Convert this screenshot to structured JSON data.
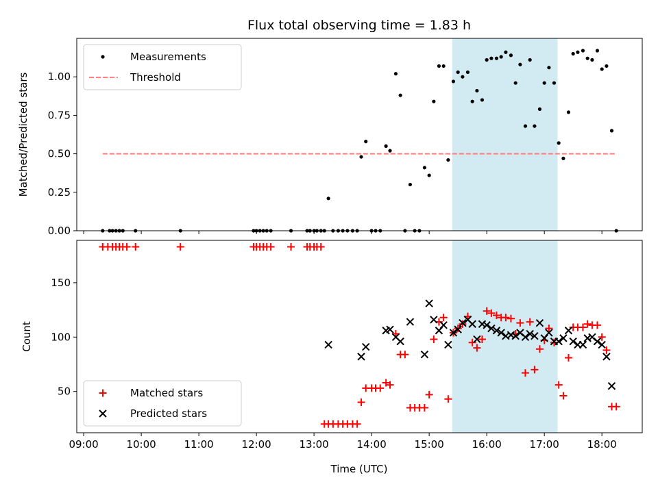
{
  "chart_data": {
    "title": "Flux total observing time = 1.83 h",
    "xlabel": "Time (UTC)",
    "x_ticks": [
      "09:00",
      "10:00",
      "11:00",
      "12:00",
      "13:00",
      "14:00",
      "15:00",
      "16:00",
      "17:00",
      "18:00"
    ],
    "x_range_hours": [
      8.88,
      18.7
    ],
    "highlight_span_hours": [
      15.4,
      17.23
    ],
    "highlight_color": "#add8e6",
    "panels": [
      {
        "type": "scatter",
        "ylabel": "Matched/Predicted stars",
        "ylim": [
          0,
          1.25
        ],
        "y_ticks": [
          "0.00",
          "0.25",
          "0.50",
          "0.75",
          "1.00"
        ],
        "legend": {
          "position": "top-left",
          "entries": [
            "Measurements",
            "Threshold"
          ]
        },
        "series": [
          {
            "name": "Measurements",
            "marker": "dot",
            "color": "#000000",
            "x": [
              9.33,
              9.45,
              9.5,
              9.56,
              9.62,
              9.68,
              9.9,
              10.68,
              11.95,
              12.0,
              12.06,
              12.12,
              12.18,
              12.25,
              12.6,
              12.88,
              12.93,
              13.0,
              13.05,
              13.12,
              13.18,
              13.25,
              13.33,
              13.42,
              13.5,
              13.58,
              13.67,
              13.75,
              13.82,
              13.9,
              14.0,
              14.07,
              14.15,
              14.25,
              14.32,
              14.42,
              14.5,
              14.58,
              14.67,
              14.75,
              14.83,
              14.92,
              15.0,
              15.08,
              15.17,
              15.25,
              15.33,
              15.42,
              15.5,
              15.58,
              15.67,
              15.75,
              15.83,
              15.92,
              16.0,
              16.08,
              16.17,
              16.25,
              16.33,
              16.42,
              16.5,
              16.58,
              16.67,
              16.75,
              16.83,
              16.92,
              17.0,
              17.08,
              17.17,
              17.25,
              17.33,
              17.42,
              17.5,
              17.58,
              17.67,
              17.75,
              17.83,
              17.92,
              18.0,
              18.08,
              18.17,
              18.25
            ],
            "y": [
              0,
              0,
              0,
              0,
              0,
              0,
              0,
              0,
              0,
              0,
              0,
              0,
              0,
              0,
              0,
              0,
              0,
              0,
              0,
              0,
              0,
              0.21,
              0,
              0,
              0,
              0,
              0,
              0,
              0.48,
              0.58,
              0,
              0,
              0,
              0.55,
              0.52,
              1.02,
              0.88,
              0,
              0.3,
              0,
              0,
              0.41,
              0.36,
              0.84,
              1.07,
              1.07,
              0.46,
              0.97,
              1.03,
              1.0,
              1.03,
              0.84,
              0.91,
              0.85,
              1.11,
              1.12,
              1.12,
              1.13,
              1.16,
              1.14,
              0.96,
              1.08,
              0.68,
              1.11,
              0.68,
              0.79,
              0.96,
              1.06,
              0.96,
              0.57,
              0.47,
              0.77,
              1.15,
              1.16,
              1.17,
              1.12,
              1.11,
              1.17,
              1.05,
              1.07,
              0.65,
              0
            ]
          },
          {
            "name": "Threshold",
            "marker": "dashed-line",
            "color": "#ff7f7f",
            "x": [
              9.33,
              18.25
            ],
            "y": [
              0.5,
              0.5
            ]
          }
        ]
      },
      {
        "type": "scatter",
        "ylabel": "Count",
        "ylim": [
          12,
          189
        ],
        "y_ticks": [
          "50",
          "100",
          "150"
        ],
        "legend": {
          "position": "bottom-left",
          "entries": [
            "Matched stars",
            "Predicted stars"
          ]
        },
        "series": [
          {
            "name": "Matched stars",
            "marker": "plus",
            "color": "#ff0000",
            "x": [
              9.33,
              9.42,
              9.5,
              9.56,
              9.62,
              9.68,
              9.75,
              9.9,
              10.68,
              11.95,
              12.0,
              12.06,
              12.12,
              12.18,
              12.25,
              12.6,
              12.88,
              12.93,
              13.0,
              13.05,
              13.12,
              13.18,
              13.25,
              13.33,
              13.42,
              13.5,
              13.58,
              13.67,
              13.75,
              13.82,
              13.9,
              14.0,
              14.07,
              14.15,
              14.25,
              14.32,
              14.42,
              14.5,
              14.58,
              14.67,
              14.75,
              14.83,
              14.92,
              15.0,
              15.08,
              15.17,
              15.25,
              15.33,
              15.42,
              15.5,
              15.58,
              15.67,
              15.75,
              15.83,
              15.92,
              16.0,
              16.08,
              16.17,
              16.25,
              16.33,
              16.42,
              16.5,
              16.58,
              16.67,
              16.75,
              16.83,
              16.92,
              17.0,
              17.08,
              17.17,
              17.25,
              17.33,
              17.42,
              17.5,
              17.58,
              17.67,
              17.75,
              17.83,
              17.92,
              18.0,
              18.08,
              18.17,
              18.25
            ],
            "y": [
              183,
              183,
              183,
              183,
              183,
              183,
              183,
              183,
              183,
              183,
              183,
              183,
              183,
              183,
              183,
              183,
              183,
              183,
              183,
              183,
              183,
              20,
              20,
              20,
              20,
              20,
              20,
              20,
              20,
              40,
              53,
              53,
              53,
              53,
              58,
              56,
              103,
              84,
              84,
              35,
              35,
              35,
              35,
              47,
              98,
              114,
              118,
              43,
              104,
              108,
              112,
              119,
              95,
              90,
              98,
              124,
              122,
              120,
              118,
              118,
              117,
              103,
              113,
              67,
              114,
              70,
              89,
              97,
              108,
              95,
              56,
              46,
              81,
              109,
              109,
              109,
              112,
              111,
              111,
              100,
              88,
              36,
              36
            ]
          },
          {
            "name": "Predicted stars",
            "marker": "x",
            "color": "#000000",
            "x": [
              13.25,
              13.82,
              13.9,
              14.25,
              14.32,
              14.42,
              14.5,
              14.67,
              14.92,
              15.0,
              15.08,
              15.17,
              15.25,
              15.33,
              15.42,
              15.5,
              15.58,
              15.67,
              15.75,
              15.83,
              15.92,
              16.0,
              16.08,
              16.17,
              16.25,
              16.33,
              16.42,
              16.5,
              16.58,
              16.67,
              16.75,
              16.83,
              16.92,
              17.0,
              17.08,
              17.17,
              17.25,
              17.33,
              17.42,
              17.5,
              17.58,
              17.67,
              17.75,
              17.83,
              17.92,
              18.0,
              18.08,
              18.17
            ],
            "y": [
              93,
              82,
              91,
              106,
              107,
              100,
              96,
              114,
              84,
              131,
              116,
              106,
              111,
              93,
              104,
              107,
              113,
              116,
              112,
              98,
              112,
              111,
              108,
              106,
              104,
              101,
              102,
              101,
              104,
              100,
              103,
              101,
              113,
              99,
              104,
              96,
              96,
              99,
              106,
              96,
              93,
              93,
              99,
              100,
              96,
              93,
              82,
              55
            ]
          }
        ]
      }
    ]
  }
}
